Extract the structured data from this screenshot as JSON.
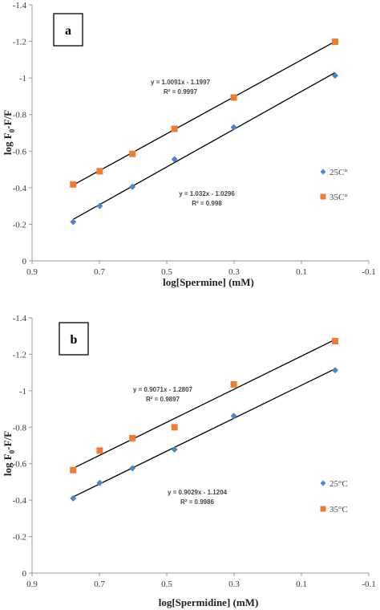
{
  "chart_data": [
    {
      "type": "scatter",
      "panel_label": "a",
      "xlabel": "log[Spermine] (mM)",
      "ylabel_main": "log F",
      "ylabel_sub": "0",
      "ylabel_tail": "-F/F",
      "x_reversed": true,
      "y_reversed": true,
      "xlim": [
        -0.1,
        0.9
      ],
      "ylim": [
        0,
        -1.4
      ],
      "x_ticks": [
        0.9,
        0.7,
        0.5,
        0.3,
        0.1,
        -0.1
      ],
      "x_tick_labels": [
        "0.9",
        "0.7",
        "0.5",
        "0.3",
        "0.1",
        "-0.1"
      ],
      "y_ticks": [
        0,
        -0.2,
        -0.4,
        -0.6,
        -0.8,
        -1,
        -1.2,
        -1.4
      ],
      "y_tick_labels": [
        "0",
        "-0.2",
        "-0.4",
        "-0.6",
        "-0.8",
        "-1",
        "-1.2",
        "-1.4"
      ],
      "grid": false,
      "legend_position": "right",
      "series": [
        {
          "name": "25C°",
          "marker": "diamond",
          "color": "#4a86c8",
          "x": [
            0.778,
            0.699,
            0.602,
            0.477,
            0.301,
            0.0
          ],
          "y": [
            -0.213,
            -0.3,
            -0.405,
            -0.555,
            -0.73,
            -1.013
          ],
          "trendline": {
            "slope": 1.032,
            "intercept": -1.0296,
            "equation": "y = 1.032x - 1.0296",
            "r2": "R² = 0.998"
          }
        },
        {
          "name": "35C°",
          "marker": "square",
          "color": "#ed7d31",
          "x": [
            0.778,
            0.699,
            0.602,
            0.477,
            0.301,
            0.0
          ],
          "y": [
            -0.418,
            -0.49,
            -0.585,
            -0.722,
            -0.893,
            -1.198
          ],
          "trendline": {
            "slope": 1.0091,
            "intercept": -1.1997,
            "equation": "y = 1.0091x - 1.1997",
            "r2": "R² = 0.9997"
          }
        }
      ]
    },
    {
      "type": "scatter",
      "panel_label": "b",
      "xlabel": "log[Spermidine] (mM)",
      "ylabel_main": "log F",
      "ylabel_sub": "0",
      "ylabel_tail": "-F/F",
      "x_reversed": true,
      "y_reversed": true,
      "xlim": [
        -0.1,
        0.9
      ],
      "ylim": [
        0,
        -1.4
      ],
      "x_ticks": [
        0.9,
        0.7,
        0.5,
        0.3,
        0.1,
        -0.1
      ],
      "x_tick_labels": [
        "0.9",
        "0.7",
        "0.5",
        "0.3",
        "0.1",
        "-0.1"
      ],
      "y_ticks": [
        0,
        -0.2,
        -0.4,
        -0.6,
        -0.8,
        -1,
        -1.2,
        -1.4
      ],
      "y_tick_labels": [
        "0",
        "-0.2",
        "-0.4",
        "-0.6",
        "-0.8",
        "-1",
        "-1.2",
        "-1.4"
      ],
      "grid": false,
      "legend_position": "right",
      "series": [
        {
          "name": "25°C",
          "marker": "diamond",
          "color": "#4a86c8",
          "x": [
            0.778,
            0.699,
            0.602,
            0.477,
            0.301,
            0.0
          ],
          "y": [
            -0.41,
            -0.495,
            -0.575,
            -0.678,
            -0.862,
            -1.113
          ],
          "trendline": {
            "slope": 0.9029,
            "intercept": -1.1204,
            "equation": "y = 0.9029x - 1.1204",
            "r2": "R² = 0.9986"
          }
        },
        {
          "name": "35°C",
          "marker": "square",
          "color": "#ed7d31",
          "x": [
            0.778,
            0.699,
            0.602,
            0.477,
            0.301,
            0.0
          ],
          "y": [
            -0.565,
            -0.672,
            -0.74,
            -0.8,
            -1.035,
            -1.272
          ],
          "trendline": {
            "slope": 0.9071,
            "intercept": -1.2807,
            "equation": "y = 0.9071x - 1.2807",
            "r2": "R² = 0.9897"
          }
        }
      ]
    }
  ]
}
